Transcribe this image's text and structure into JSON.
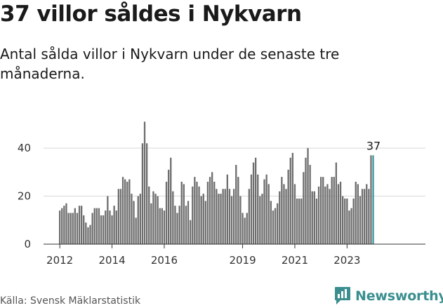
{
  "title": "37 villor såldes i Nykvarn",
  "subtitle": "Antal sålda villor i Nykvarn under de senaste tre månaderna.",
  "source": "Källa: Svensk Mäklarstatistik",
  "brand": {
    "name": "Newsworthy",
    "icon": "newsworthy-logo-icon"
  },
  "colors": {
    "bar": "#6e6e6e",
    "highlight": "#3a9a9b",
    "grid": "#d8d8d8",
    "brand": "#3a8e8f"
  },
  "chart_data": {
    "type": "bar",
    "title": "",
    "xlabel": "",
    "ylabel": "",
    "ylim": [
      0,
      52
    ],
    "yticks": [
      0,
      20,
      40
    ],
    "x_start": "2012-01",
    "x_tick_labels": [
      "2012",
      "2014",
      "2016",
      "2019",
      "2021",
      "2023"
    ],
    "x_tick_years": [
      2012,
      2014,
      2016,
      2019,
      2021,
      2023
    ],
    "values": [
      14,
      15,
      16,
      17,
      13,
      13,
      13,
      15,
      13,
      16,
      16,
      12,
      9,
      7,
      8,
      13,
      15,
      15,
      15,
      12,
      12,
      14,
      20,
      14,
      12,
      16,
      14,
      23,
      23,
      28,
      27,
      26,
      27,
      21,
      18,
      11,
      20,
      21,
      42,
      51,
      42,
      24,
      17,
      22,
      21,
      20,
      15,
      15,
      14,
      26,
      31,
      36,
      22,
      16,
      13,
      16,
      26,
      25,
      16,
      18,
      10,
      24,
      28,
      26,
      24,
      20,
      21,
      18,
      26,
      28,
      30,
      26,
      23,
      21,
      21,
      23,
      23,
      29,
      23,
      20,
      23,
      33,
      28,
      20,
      13,
      11,
      13,
      23,
      29,
      34,
      36,
      29,
      20,
      21,
      27,
      29,
      25,
      18,
      14,
      15,
      17,
      22,
      28,
      25,
      23,
      31,
      36,
      38,
      25,
      19,
      19,
      19,
      30,
      36,
      40,
      33,
      22,
      22,
      19,
      24,
      28,
      28,
      24,
      25,
      23,
      28,
      28,
      34,
      25,
      26,
      20,
      19,
      19,
      14,
      15,
      19,
      26,
      25,
      20,
      23,
      23,
      25,
      23,
      37,
      37
    ],
    "highlight_last": 1,
    "annotation": {
      "label": "37",
      "value": 37
    }
  }
}
